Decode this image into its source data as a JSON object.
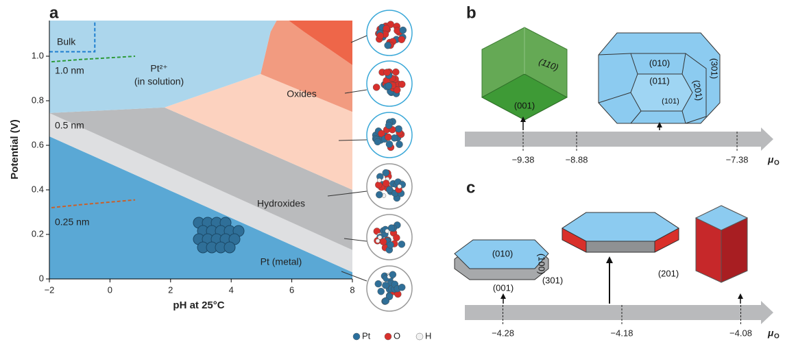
{
  "chart_data": [
    {
      "type": "phase-diagram",
      "panel_label": "a",
      "xlabel": "pH at 25°C",
      "ylabel": "Potential (V)",
      "xlim": [
        -2,
        8
      ],
      "ylim": [
        0,
        1.16
      ],
      "xticks": [
        {
          "value": -2,
          "label": "−2"
        },
        0,
        2,
        4,
        6,
        8
      ],
      "yticks": [
        0,
        0.2,
        0.4,
        0.6,
        0.8,
        {
          "value": 1,
          "label": "1.0"
        }
      ],
      "regions": [
        {
          "color": "#5aa8d5",
          "x": [
            -2,
            8,
            8,
            -2
          ],
          "y": [
            0,
            0,
            0.03,
            0.64
          ]
        },
        {
          "color": "#dedfe1",
          "x": [
            -2,
            8,
            8,
            -2
          ],
          "y": [
            0.64,
            0.03,
            0.13,
            0.745
          ]
        },
        {
          "color": "#babbbd",
          "x": [
            -2,
            8,
            8,
            1.8
          ],
          "y": [
            0.745,
            0.13,
            0.4,
            0.77
          ]
        },
        {
          "color": "#fcd2bf",
          "x": [
            1.8,
            8,
            8,
            4.97
          ],
          "y": [
            0.77,
            0.4,
            0.75,
            0.92
          ]
        },
        {
          "color": "#f29b80",
          "x": [
            4.97,
            8,
            8,
            6.4,
            5.9,
            5.5,
            5.3
          ],
          "y": [
            0.92,
            0.75,
            0.96,
            1.11,
            1.16,
            1.16,
            1.11
          ]
        },
        {
          "color": "#ee6649",
          "x": [
            5.9,
            8,
            8,
            6.4
          ],
          "y": [
            1.16,
            1.16,
            0.96,
            1.11
          ]
        },
        {
          "color": "#acd6ec",
          "x": [
            -2,
            1.8,
            4.97,
            5.3,
            5.5,
            -2
          ],
          "y": [
            0.745,
            0.77,
            0.92,
            1.11,
            1.16,
            1.16
          ]
        }
      ],
      "boundaries": [
        {
          "color": "#1f7fcf",
          "x": [
            -2,
            -0.5,
            -0.5
          ],
          "y": [
            1.02,
            1.02,
            1.16
          ]
        },
        {
          "color": "#2e9a3a",
          "x": [
            -1.93,
            -1,
            0,
            0.83
          ],
          "y": [
            0.975,
            0.985,
            0.993,
            1.0
          ]
        },
        {
          "color": "#c8602a",
          "x": [
            -1.93,
            -1,
            0,
            0.83
          ],
          "y": [
            0.32,
            0.333,
            0.345,
            0.355
          ]
        }
      ],
      "labels": [
        "Bulk",
        "1.0 nm",
        "Pt²⁺",
        "(in solution)",
        "Oxides",
        "0.5 nm",
        "Hydroxides",
        "0.25 nm",
        "Pt (metal)"
      ],
      "legend_items": [
        {
          "name": "Pt",
          "color": "#2a6f9c"
        },
        {
          "name": "O",
          "color": "#d8302c"
        },
        {
          "name": "H",
          "color": "#f2f2f2"
        }
      ]
    },
    {
      "type": "number-line",
      "panel_label": "b",
      "xlabel": "μ",
      "xlabel_sub": "O",
      "xlim": [
        -9.925,
        -7.156
      ],
      "xticks": [
        {
          "value": -9.38,
          "label": "−9.38"
        },
        {
          "value": -8.88,
          "label": "−8.88"
        },
        {
          "value": -7.38,
          "label": "−7.38"
        }
      ],
      "facet_labels": [
        "(110)",
        "(001)",
        "(010)",
        "(011)",
        "(201)",
        "(101)",
        "(301)"
      ]
    },
    {
      "type": "number-line",
      "panel_label": "c",
      "xlabel": "μ",
      "xlabel_sub": "O",
      "xlim": [
        -4.312,
        -4.063
      ],
      "xticks": [
        {
          "value": -4.28,
          "label": "−4.28"
        },
        {
          "value": -4.18,
          "label": "−4.18"
        },
        {
          "value": -4.08,
          "label": "−4.08"
        }
      ],
      "facet_labels": [
        "(010)",
        "(100)",
        "(001)",
        "(301)",
        "(201)"
      ]
    }
  ]
}
